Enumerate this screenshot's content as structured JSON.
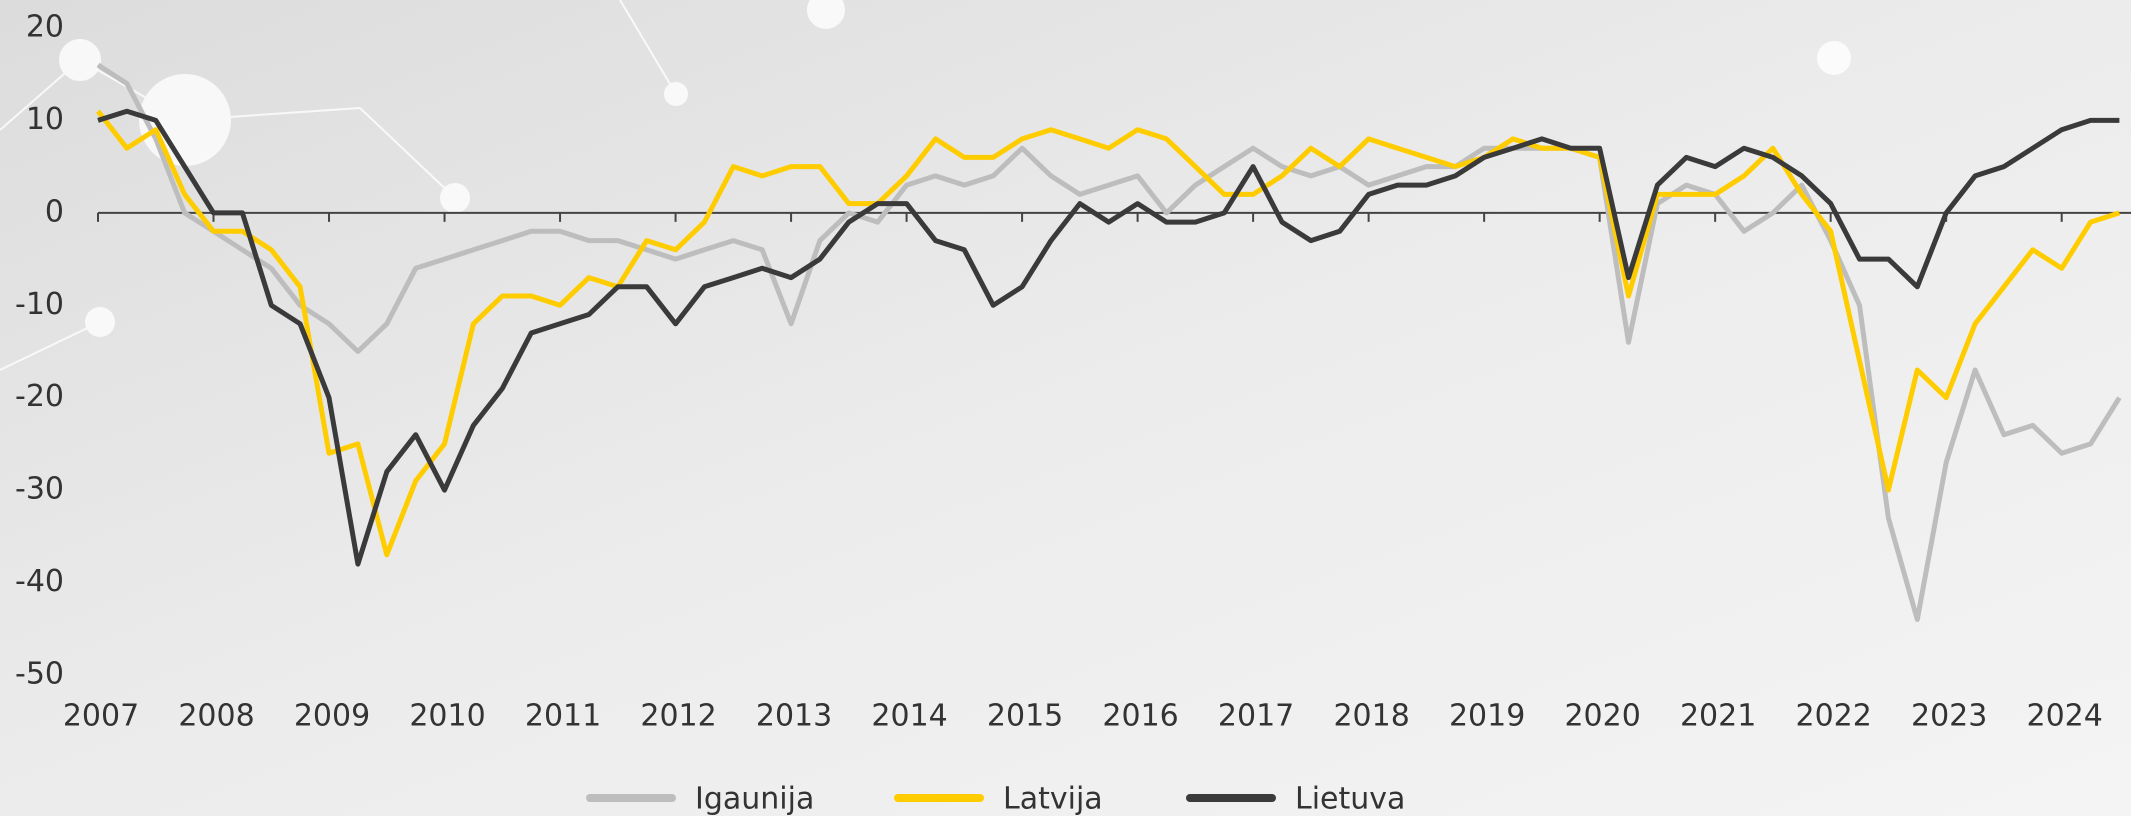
{
  "chart_data": {
    "type": "line",
    "x": [
      2007,
      2007.25,
      2007.5,
      2007.75,
      2008,
      2008.25,
      2008.5,
      2008.75,
      2009,
      2009.25,
      2009.5,
      2009.75,
      2010,
      2010.25,
      2010.5,
      2010.75,
      2011,
      2011.25,
      2011.5,
      2011.75,
      2012,
      2012.25,
      2012.5,
      2012.75,
      2013,
      2013.25,
      2013.5,
      2013.75,
      2014,
      2014.25,
      2014.5,
      2014.75,
      2015,
      2015.25,
      2015.5,
      2015.75,
      2016,
      2016.25,
      2016.5,
      2016.75,
      2017,
      2017.25,
      2017.5,
      2017.75,
      2018,
      2018.25,
      2018.5,
      2018.75,
      2019,
      2019.25,
      2019.5,
      2019.75,
      2020,
      2020.25,
      2020.5,
      2020.75,
      2021,
      2021.25,
      2021.5,
      2021.75,
      2022,
      2022.25,
      2022.5,
      2022.75,
      2023,
      2023.25,
      2023.5,
      2023.75,
      2024,
      2024.25,
      2024.5
    ],
    "series": [
      {
        "name": "Igaunija",
        "color": "#bdbdbd",
        "values": [
          16,
          14,
          8,
          0,
          -2,
          -4,
          -6,
          -10,
          -12,
          -15,
          -12,
          -6,
          -5,
          -4,
          -3,
          -2,
          -2,
          -3,
          -3,
          -4,
          -5,
          -4,
          -3,
          -4,
          -12,
          -3,
          0,
          -1,
          3,
          4,
          3,
          4,
          7,
          4,
          2,
          3,
          4,
          0,
          3,
          5,
          7,
          5,
          4,
          5,
          3,
          4,
          5,
          5,
          7,
          7,
          7,
          7,
          6,
          -14,
          1,
          3,
          2,
          -2,
          0,
          3,
          -3,
          -10,
          -33,
          -44,
          -27,
          -17,
          -24,
          -23,
          -26,
          -25,
          -20
        ]
      },
      {
        "name": "Latvija",
        "color": "#ffcc00",
        "values": [
          11,
          7,
          9,
          2,
          -2,
          -2,
          -4,
          -8,
          -26,
          -25,
          -37,
          -29,
          -25,
          -12,
          -9,
          -9,
          -10,
          -7,
          -8,
          -3,
          -4,
          -1,
          5,
          4,
          5,
          5,
          1,
          1,
          4,
          8,
          6,
          6,
          8,
          9,
          8,
          7,
          9,
          8,
          5,
          2,
          2,
          4,
          7,
          5,
          8,
          7,
          6,
          5,
          6,
          8,
          7,
          7,
          6,
          -9,
          2,
          2,
          2,
          4,
          7,
          2,
          -2,
          -16,
          -30,
          -17,
          -20,
          -12,
          -8,
          -4,
          -6,
          -1,
          0
        ]
      },
      {
        "name": "Lietuva",
        "color": "#3a3a3a",
        "values": [
          10,
          11,
          10,
          5,
          0,
          0,
          -10,
          -12,
          -20,
          -38,
          -28,
          -24,
          -30,
          -23,
          -19,
          -13,
          -12,
          -11,
          -8,
          -8,
          -12,
          -8,
          -7,
          -6,
          -7,
          -5,
          -1,
          1,
          1,
          -3,
          -4,
          -10,
          -8,
          -3,
          1,
          -1,
          1,
          -1,
          -1,
          0,
          5,
          -1,
          -3,
          -2,
          2,
          3,
          3,
          4,
          6,
          7,
          8,
          7,
          7,
          -7,
          3,
          6,
          5,
          7,
          6,
          4,
          1,
          -5,
          -5,
          -8,
          0,
          4,
          5,
          7,
          9,
          10,
          10
        ]
      }
    ],
    "xlim": [
      2007,
      2024.6
    ],
    "xticks": [
      2007,
      2008,
      2009,
      2010,
      2011,
      2012,
      2013,
      2014,
      2015,
      2016,
      2017,
      2018,
      2019,
      2020,
      2021,
      2022,
      2023,
      2024
    ],
    "ylim": [
      -50,
      20
    ],
    "yticks": [
      -50,
      -40,
      -30,
      -20,
      -10,
      0,
      10,
      20
    ],
    "grid": false
  }
}
